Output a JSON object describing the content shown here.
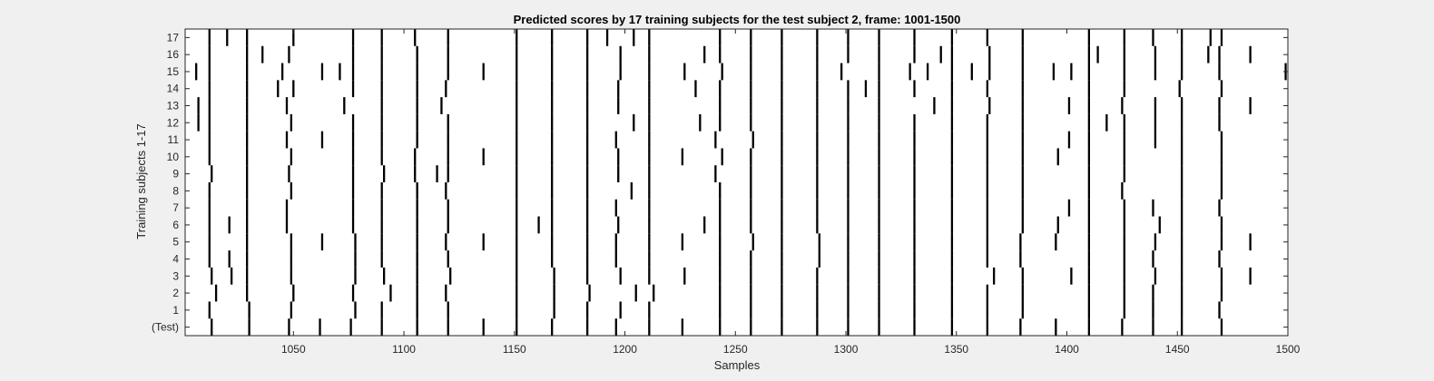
{
  "chart_data": {
    "type": "heatmap",
    "title": "Predicted scores by 17 training subjects for the test subject 2, frame: 1001-1500",
    "xlabel": "Samples",
    "ylabel": "Training subjects 1-17",
    "xlim": [
      1001,
      1500
    ],
    "xticks": [
      1050,
      1100,
      1150,
      1200,
      1250,
      1300,
      1350,
      1400,
      1450,
      1500
    ],
    "yticklabels": [
      "(Test)",
      "1",
      "2",
      "3",
      "4",
      "5",
      "6",
      "7",
      "8",
      "9",
      "10",
      "11",
      "12",
      "13",
      "14",
      "15",
      "16",
      "17"
    ],
    "colors": {
      "background": "#ffffff",
      "event": "#000000",
      "figure": "#f0f0f0"
    },
    "rows": [
      {
        "label": "(Test)",
        "events": [
          1013,
          1030,
          1048,
          1062,
          1076,
          1090,
          1106,
          1120,
          1136,
          1151,
          1167,
          1183,
          1196,
          1211,
          1226,
          1243,
          1257,
          1271,
          1287,
          1301,
          1315,
          1331,
          1348,
          1364,
          1379,
          1395,
          1410,
          1425,
          1439,
          1452,
          1470
        ]
      },
      {
        "label": "1",
        "events": [
          1012,
          1030,
          1049,
          1078,
          1090,
          1106,
          1120,
          1151,
          1168,
          1183,
          1198,
          1211,
          1243,
          1257,
          1271,
          1287,
          1301,
          1315,
          1331,
          1348,
          1364,
          1380,
          1410,
          1426,
          1439,
          1452,
          1469
        ]
      },
      {
        "label": "2",
        "events": [
          1015,
          1029,
          1050,
          1077,
          1094,
          1106,
          1119,
          1151,
          1168,
          1184,
          1205,
          1213,
          1243,
          1257,
          1271,
          1287,
          1301,
          1315,
          1331,
          1348,
          1364,
          1380,
          1410,
          1426,
          1439,
          1452,
          1470
        ]
      },
      {
        "label": "3",
        "events": [
          1013,
          1022,
          1029,
          1049,
          1078,
          1091,
          1106,
          1121,
          1151,
          1168,
          1183,
          1198,
          1211,
          1227,
          1243,
          1257,
          1271,
          1287,
          1301,
          1315,
          1331,
          1348,
          1367,
          1380,
          1402,
          1410,
          1426,
          1440,
          1452,
          1470,
          1483
        ]
      },
      {
        "label": "4",
        "events": [
          1012,
          1021,
          1029,
          1049,
          1078,
          1090,
          1106,
          1120,
          1151,
          1167,
          1183,
          1196,
          1211,
          1243,
          1257,
          1271,
          1288,
          1301,
          1315,
          1331,
          1348,
          1364,
          1379,
          1410,
          1426,
          1439,
          1452,
          1469
        ]
      },
      {
        "label": "5",
        "events": [
          1012,
          1029,
          1049,
          1063,
          1078,
          1090,
          1106,
          1119,
          1136,
          1151,
          1167,
          1183,
          1196,
          1211,
          1226,
          1243,
          1258,
          1271,
          1288,
          1301,
          1315,
          1331,
          1348,
          1364,
          1379,
          1395,
          1410,
          1426,
          1440,
          1452,
          1470,
          1483
        ]
      },
      {
        "label": "6",
        "events": [
          1012,
          1021,
          1029,
          1047,
          1077,
          1090,
          1106,
          1120,
          1151,
          1161,
          1167,
          1183,
          1197,
          1211,
          1236,
          1243,
          1257,
          1271,
          1287,
          1301,
          1315,
          1331,
          1348,
          1364,
          1380,
          1396,
          1410,
          1426,
          1442,
          1452,
          1470
        ]
      },
      {
        "label": "7",
        "events": [
          1012,
          1029,
          1047,
          1077,
          1090,
          1106,
          1120,
          1151,
          1167,
          1183,
          1196,
          1211,
          1243,
          1257,
          1271,
          1287,
          1301,
          1315,
          1331,
          1348,
          1364,
          1380,
          1401,
          1410,
          1426,
          1439,
          1452,
          1469
        ]
      },
      {
        "label": "8",
        "events": [
          1012,
          1029,
          1049,
          1077,
          1090,
          1106,
          1119,
          1151,
          1167,
          1183,
          1203,
          1211,
          1243,
          1257,
          1271,
          1287,
          1301,
          1315,
          1331,
          1348,
          1364,
          1380,
          1410,
          1425,
          1452,
          1470
        ]
      },
      {
        "label": "9",
        "events": [
          1013,
          1029,
          1048,
          1077,
          1091,
          1105,
          1115,
          1120,
          1151,
          1167,
          1183,
          1197,
          1211,
          1241,
          1257,
          1271,
          1287,
          1301,
          1315,
          1331,
          1348,
          1364,
          1380,
          1410,
          1426,
          1452,
          1470
        ]
      },
      {
        "label": "10",
        "events": [
          1012,
          1029,
          1049,
          1077,
          1090,
          1105,
          1120,
          1136,
          1151,
          1167,
          1183,
          1197,
          1211,
          1226,
          1244,
          1257,
          1271,
          1287,
          1301,
          1315,
          1331,
          1348,
          1364,
          1380,
          1396,
          1410,
          1426,
          1452,
          1470
        ]
      },
      {
        "label": "11",
        "events": [
          1012,
          1029,
          1047,
          1063,
          1077,
          1090,
          1106,
          1120,
          1151,
          1167,
          1183,
          1196,
          1211,
          1241,
          1258,
          1271,
          1287,
          1301,
          1315,
          1331,
          1348,
          1364,
          1380,
          1401,
          1410,
          1426,
          1440,
          1452,
          1470
        ]
      },
      {
        "label": "12",
        "events": [
          1007,
          1012,
          1029,
          1049,
          1077,
          1090,
          1106,
          1120,
          1151,
          1167,
          1183,
          1204,
          1211,
          1234,
          1243,
          1257,
          1271,
          1287,
          1301,
          1315,
          1331,
          1348,
          1364,
          1380,
          1410,
          1418,
          1426,
          1440,
          1452,
          1469
        ]
      },
      {
        "label": "13",
        "events": [
          1007,
          1012,
          1029,
          1047,
          1073,
          1090,
          1106,
          1117,
          1151,
          1167,
          1183,
          1197,
          1211,
          1243,
          1257,
          1271,
          1287,
          1301,
          1315,
          1340,
          1348,
          1365,
          1380,
          1401,
          1410,
          1425,
          1440,
          1452,
          1469,
          1483
        ]
      },
      {
        "label": "14",
        "events": [
          1012,
          1029,
          1043,
          1050,
          1077,
          1090,
          1106,
          1119,
          1151,
          1167,
          1183,
          1197,
          1211,
          1232,
          1243,
          1257,
          1271,
          1287,
          1301,
          1309,
          1315,
          1331,
          1348,
          1364,
          1380,
          1410,
          1426,
          1451,
          1470
        ]
      },
      {
        "label": "15",
        "events": [
          1006,
          1012,
          1029,
          1045,
          1063,
          1071,
          1077,
          1090,
          1106,
          1120,
          1136,
          1151,
          1167,
          1183,
          1198,
          1211,
          1227,
          1244,
          1257,
          1271,
          1287,
          1298,
          1315,
          1329,
          1337,
          1348,
          1357,
          1365,
          1380,
          1394,
          1402,
          1410,
          1426,
          1440,
          1452,
          1469,
          1499
        ]
      },
      {
        "label": "16",
        "events": [
          1012,
          1029,
          1036,
          1048,
          1077,
          1090,
          1106,
          1120,
          1151,
          1167,
          1183,
          1198,
          1211,
          1236,
          1243,
          1257,
          1271,
          1287,
          1301,
          1315,
          1331,
          1343,
          1348,
          1365,
          1380,
          1410,
          1414,
          1426,
          1440,
          1452,
          1464,
          1469,
          1483
        ]
      },
      {
        "label": "17",
        "events": [
          1012,
          1020,
          1029,
          1050,
          1077,
          1090,
          1105,
          1120,
          1151,
          1167,
          1183,
          1192,
          1204,
          1211,
          1243,
          1257,
          1271,
          1287,
          1301,
          1315,
          1331,
          1348,
          1364,
          1380,
          1410,
          1426,
          1439,
          1452,
          1465,
          1470
        ]
      }
    ]
  }
}
